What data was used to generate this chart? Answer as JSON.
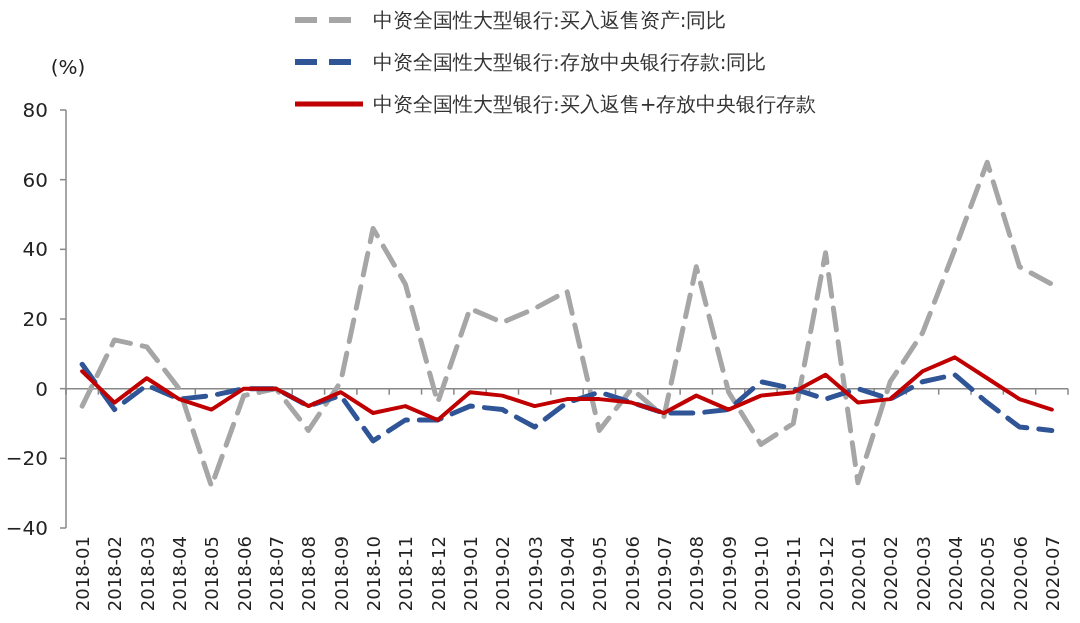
{
  "chart_data": {
    "type": "line",
    "ylabel": "(%)",
    "categories": [
      "2018-01",
      "2018-02",
      "2018-03",
      "2018-04",
      "2018-05",
      "2018-06",
      "2018-07",
      "2018-08",
      "2018-09",
      "2018-10",
      "2018-11",
      "2018-12",
      "2019-01",
      "2019-02",
      "2019-03",
      "2019-04",
      "2019-05",
      "2019-06",
      "2019-07",
      "2019-08",
      "2019-09",
      "2019-10",
      "2019-11",
      "2019-12",
      "2020-01",
      "2020-02",
      "2020-03",
      "2020-04",
      "2020-05",
      "2020-06",
      "2020-07"
    ],
    "series": [
      {
        "name": "中资全国性大型银行:买入返售资产:同比",
        "color": "#a6a6a6",
        "line_style": "dashed",
        "values": [
          -5,
          14,
          12,
          0,
          -28,
          -2,
          0,
          -12,
          2,
          46,
          30,
          -4,
          23,
          19,
          23,
          28,
          -12,
          0,
          -8,
          35,
          -1,
          -16,
          -10,
          39,
          -27,
          2,
          16,
          40,
          65,
          35,
          30
        ]
      },
      {
        "name": "中资全国性大型银行:存放中央银行存款:同比",
        "color": "#2f5597",
        "line_style": "dashed",
        "values": [
          7,
          -6,
          1,
          -3,
          -2,
          0,
          0,
          -5,
          -2,
          -15,
          -9,
          -9,
          -5,
          -6,
          -11,
          -4,
          -1,
          -4,
          -7,
          -7,
          -6,
          2,
          0,
          -3,
          0,
          -3,
          2,
          4,
          -4,
          -11,
          -12
        ]
      },
      {
        "name": "中资全国性大型银行:买入返售+存放中央银行存款",
        "color": "#c00000",
        "line_style": "solid",
        "values": [
          5,
          -4,
          3,
          -3,
          -6,
          0,
          0,
          -5,
          -1,
          -7,
          -5,
          -9,
          -1,
          -2,
          -5,
          -3,
          -3,
          -4,
          -7,
          -2,
          -6,
          -2,
          -1,
          4,
          -4,
          -3,
          5,
          9,
          3,
          -3,
          -6
        ]
      }
    ],
    "ylim": [
      -40,
      80
    ],
    "yticks": [
      -40,
      -20,
      0,
      20,
      40,
      60,
      80
    ],
    "legend": "top",
    "marker": "none"
  }
}
